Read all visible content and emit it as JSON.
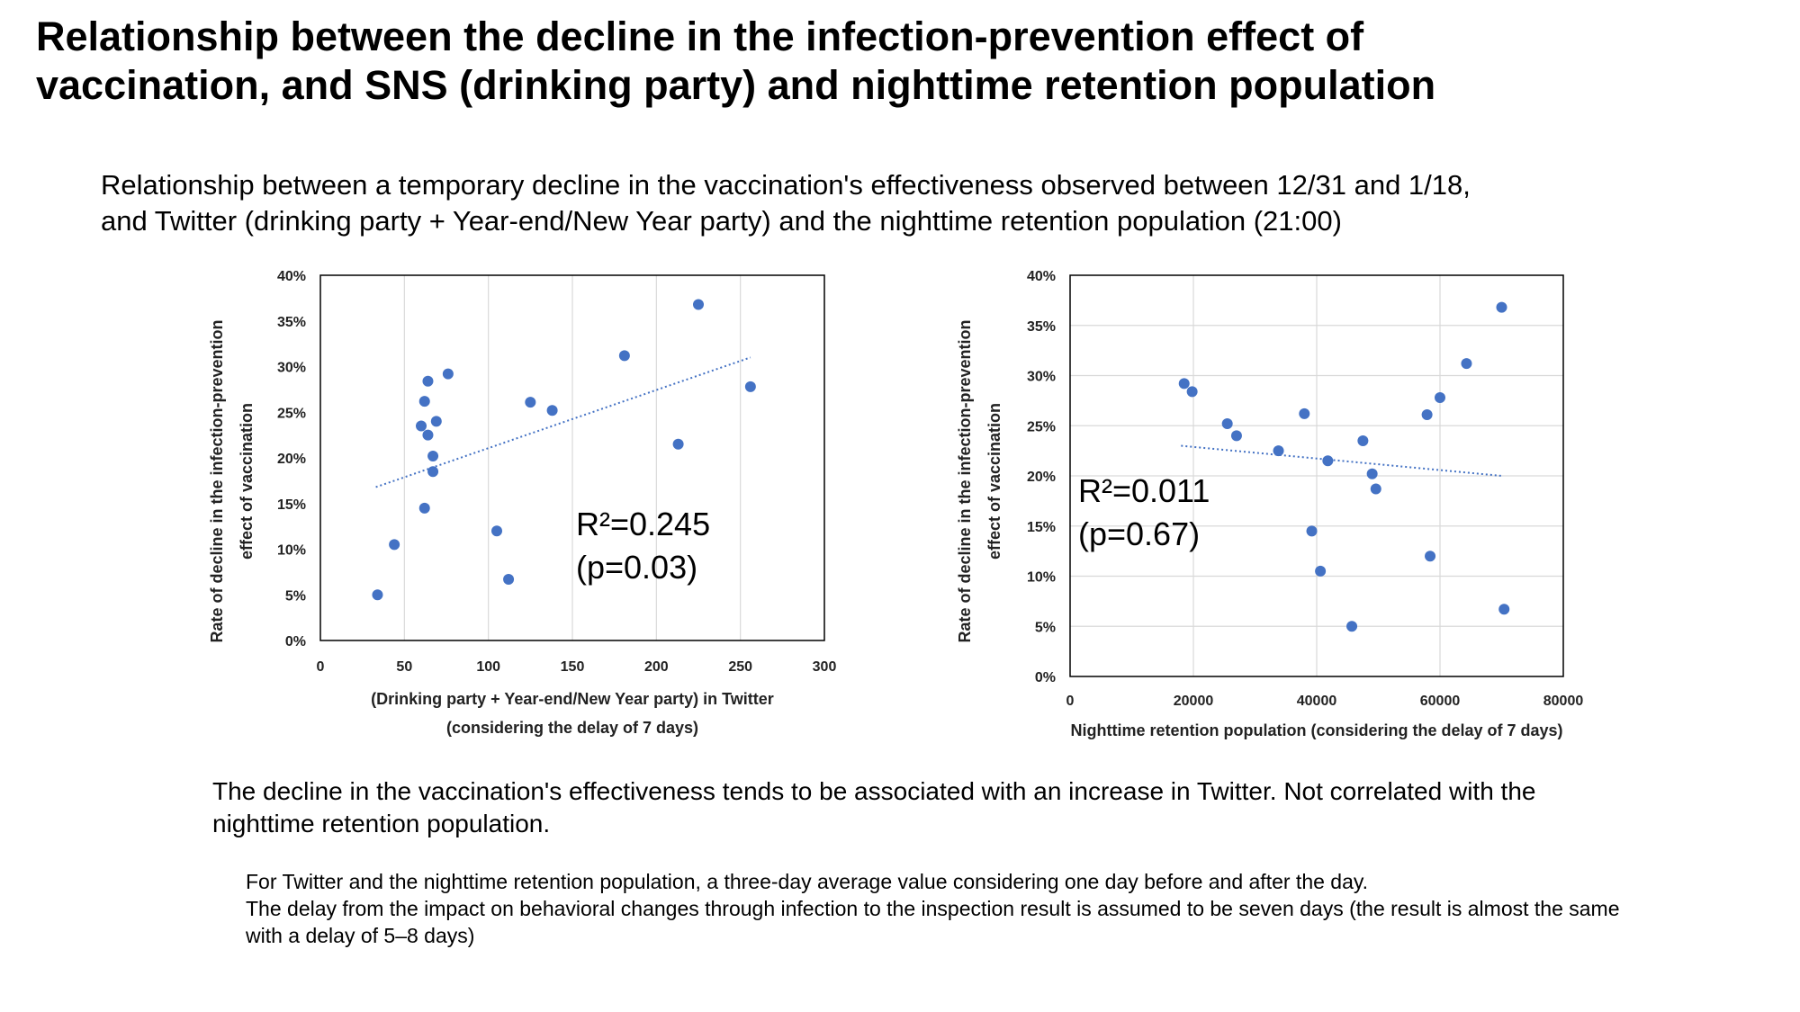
{
  "title": {
    "line1": "Relationship between the decline in the infection-prevention effect of",
    "line2": "vaccination, and SNS (drinking party) and nighttime retention population"
  },
  "subtitle": {
    "line1": "Relationship between a temporary decline in the vaccination's effectiveness observed between 12/31 and 1/18,",
    "line2": "and Twitter (drinking party + Year-end/New Year party) and the nighttime retention population (21:00)"
  },
  "conclusion": "The decline in the vaccination's effectiveness tends to be associated with an increase in Twitter. Not correlated with the nighttime retention population.",
  "notes": {
    "line1": "For Twitter and the nighttime retention population, a three-day average value considering one day before and after the day.",
    "line2": "The delay from the impact on behavioral changes through infection to the inspection result is assumed to be seven days (the result is almost the same with a delay of 5–8 days)"
  },
  "colors": {
    "point": "#4472c4",
    "trend": "#4472c4",
    "grid": "#d9d9d9",
    "axis": "#000000"
  },
  "chart_data": [
    {
      "type": "scatter",
      "xlabel": [
        "(Drinking party + Year-end/New Year party) in Twitter",
        "(considering the delay of 7 days)"
      ],
      "ylabel": [
        "Rate of decline in the infection-prevention",
        "effect of vaccination"
      ],
      "xlim": [
        0,
        300
      ],
      "ylim": [
        0,
        40
      ],
      "xticks": [
        "0",
        "50",
        "100",
        "150",
        "200",
        "250",
        "300"
      ],
      "yticks": [
        "0%",
        "5%",
        "10%",
        "15%",
        "20%",
        "25%",
        "30%",
        "35%",
        "40%"
      ],
      "grid": "vertical",
      "trendline": {
        "x": [
          33,
          256
        ],
        "y": [
          16.8,
          31.0
        ],
        "style": "dotted"
      },
      "annotation": {
        "line1": "R²=0.245",
        "line2": "(p=0.03)"
      },
      "points": [
        {
          "x": 34,
          "y": 5.0
        },
        {
          "x": 44,
          "y": 10.5
        },
        {
          "x": 60,
          "y": 23.5
        },
        {
          "x": 62,
          "y": 14.5
        },
        {
          "x": 62,
          "y": 26.2
        },
        {
          "x": 64,
          "y": 22.5
        },
        {
          "x": 64,
          "y": 28.4
        },
        {
          "x": 67,
          "y": 18.5
        },
        {
          "x": 67,
          "y": 20.2
        },
        {
          "x": 69,
          "y": 24.0
        },
        {
          "x": 76,
          "y": 29.2
        },
        {
          "x": 105,
          "y": 12.0
        },
        {
          "x": 112,
          "y": 6.7
        },
        {
          "x": 125,
          "y": 26.1
        },
        {
          "x": 138,
          "y": 25.2
        },
        {
          "x": 181,
          "y": 31.2
        },
        {
          "x": 213,
          "y": 21.5
        },
        {
          "x": 225,
          "y": 36.8
        },
        {
          "x": 256,
          "y": 27.8
        }
      ]
    },
    {
      "type": "scatter",
      "xlabel": [
        "Nighttime retention population (considering the delay of 7 days)"
      ],
      "ylabel": [
        "Rate of decline in the infection-prevention",
        "effect of vaccination"
      ],
      "xlim": [
        0,
        80000
      ],
      "ylim": [
        0,
        40
      ],
      "xticks": [
        "0",
        "20000",
        "40000",
        "60000",
        "80000"
      ],
      "yticks": [
        "0%",
        "5%",
        "10%",
        "15%",
        "20%",
        "25%",
        "30%",
        "35%",
        "40%"
      ],
      "grid": "both",
      "trendline": {
        "x": [
          18000,
          70000
        ],
        "y": [
          23.0,
          20.0
        ],
        "style": "dotted"
      },
      "annotation": {
        "line1": "R²=0.011",
        "line2": "(p=0.67)"
      },
      "points": [
        {
          "x": 18500,
          "y": 29.2
        },
        {
          "x": 19800,
          "y": 28.4
        },
        {
          "x": 25500,
          "y": 25.2
        },
        {
          "x": 27000,
          "y": 24.0
        },
        {
          "x": 33800,
          "y": 22.5
        },
        {
          "x": 38000,
          "y": 26.2
        },
        {
          "x": 39200,
          "y": 14.5
        },
        {
          "x": 40600,
          "y": 10.5
        },
        {
          "x": 41800,
          "y": 21.5
        },
        {
          "x": 45700,
          "y": 5.0
        },
        {
          "x": 47500,
          "y": 23.5
        },
        {
          "x": 49000,
          "y": 20.2
        },
        {
          "x": 49600,
          "y": 18.7
        },
        {
          "x": 57900,
          "y": 26.1
        },
        {
          "x": 58400,
          "y": 12.0
        },
        {
          "x": 60000,
          "y": 27.8
        },
        {
          "x": 64300,
          "y": 31.2
        },
        {
          "x": 70000,
          "y": 36.8
        },
        {
          "x": 70400,
          "y": 6.7
        }
      ]
    }
  ]
}
